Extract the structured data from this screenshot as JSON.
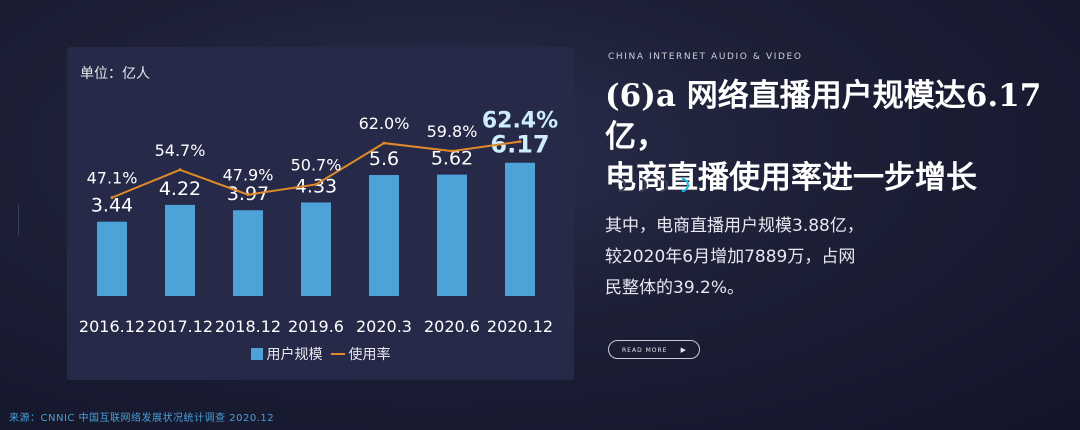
{
  "kicker": "CHINA INTERNET AUDIO & VIDEO",
  "headline": {
    "line1": "(6)a 网络直播用户规模达6.17亿，",
    "line2": "电商直播使用率进一步增长"
  },
  "body": {
    "line1": "其中，电商直播用户规模3.88亿，",
    "line2": "较2020年6月增加7889万，占网",
    "line3": "民整体的39.2%。"
  },
  "read_more": {
    "label": "READ MORE",
    "arrow": "▶"
  },
  "source": "来源：CNNIC 中国互联网络发展状况统计调查 2020.12",
  "chart": {
    "unit_label": "单位：亿人"
  },
  "colors": {
    "bar": "#4da3d8",
    "line": "#e08a2a",
    "highlight": "#cdeefa",
    "accent": "#19b5e6"
  },
  "chart_data": {
    "type": "bar",
    "categories": [
      "2016.12",
      "2017.12",
      "2018.12",
      "2019.6",
      "2020.3",
      "2020.6",
      "2020.12"
    ],
    "series": [
      {
        "name": "用户规模",
        "type": "bar",
        "values": [
          3.44,
          4.22,
          3.97,
          4.33,
          5.6,
          5.62,
          6.17
        ],
        "labels": [
          "3.44",
          "4.22",
          "3.97",
          "4.33",
          "5.6",
          "5.62",
          "6.17"
        ]
      },
      {
        "name": "使用率",
        "type": "line",
        "values": [
          47.1,
          54.7,
          47.9,
          50.7,
          62.0,
          59.8,
          62.4
        ],
        "labels": [
          "47.1%",
          "54.7%",
          "47.9%",
          "50.7%",
          "62.0%",
          "59.8%",
          "62.4%"
        ]
      }
    ],
    "highlight_index": 6,
    "legend": [
      "用户规模",
      "使用率"
    ]
  }
}
